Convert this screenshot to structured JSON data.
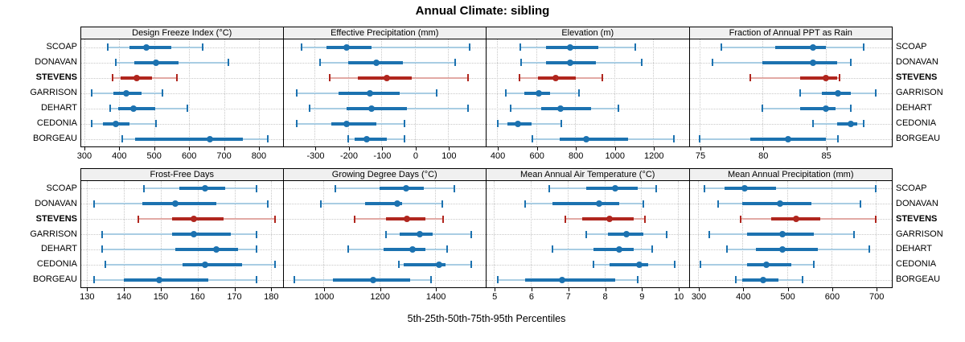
{
  "title": "Annual Climate: sibling",
  "caption": "5th-25th-50th-75th-95th Percentiles",
  "stations": [
    "SCOAP",
    "DONAVAN",
    "STEVENS",
    "GARRISON",
    "DEHART",
    "CEDONIA",
    "BORGEAU"
  ],
  "highlight_station": "STEVENS",
  "colors": {
    "blue": "#1c72b0",
    "blue_light": "#a9cde3",
    "red": "#b0261e",
    "red_light": "#e2aaa5",
    "grid": "#c8c8c8",
    "strip_bg": "#f0f0f0",
    "border": "#000000"
  },
  "chart_data": {
    "type": "scatter",
    "note": "Trellis dot plot: each row is a station's 5th-25th-50th-75th-95th percentile summary drawn as whisker (5-95), thick bar (25-75) and median dot; STEVENS highlighted in red.",
    "title": "Annual Climate: sibling",
    "xlabel": "5th-25th-50th-75th-95th Percentiles",
    "legend_position": "none",
    "grid": "dotted",
    "panels": [
      {
        "title": "Design Freeze Index (°C)",
        "row": 0,
        "col": 0,
        "xlim": [
          291,
          868
        ],
        "ticks": [
          300,
          400,
          500,
          600,
          700,
          800
        ],
        "values": {
          "SCOAP": [
            368,
            430,
            478,
            550,
            638
          ],
          "DONAVAN": [
            390,
            443,
            505,
            570,
            713
          ],
          "STEVENS": [
            381,
            404,
            450,
            494,
            565
          ],
          "GARRISON": [
            321,
            384,
            420,
            464,
            524
          ],
          "DEHART": [
            374,
            396,
            441,
            504,
            594
          ],
          "CEDONIA": [
            321,
            354,
            391,
            430,
            505
          ],
          "BORGEAU": [
            409,
            446,
            660,
            753,
            826
          ]
        }
      },
      {
        "title": "Effective Precipitation (mm)",
        "row": 0,
        "col": 1,
        "xlim": [
          -394,
          210
        ],
        "ticks": [
          -300,
          -200,
          -100,
          0,
          100
        ],
        "values": {
          "SCOAP": [
            -340,
            -265,
            -205,
            -130,
            165
          ],
          "DONAVAN": [
            -285,
            -200,
            -115,
            -35,
            120
          ],
          "STEVENS": [
            -255,
            -170,
            -85,
            -10,
            160
          ],
          "GARRISON": [
            -355,
            -230,
            -135,
            -45,
            65
          ],
          "DEHART": [
            -315,
            -205,
            -130,
            -25,
            160
          ],
          "CEDONIA": [
            -355,
            -250,
            -205,
            -115,
            -30
          ],
          "BORGEAU": [
            -200,
            -180,
            -145,
            -85,
            -30
          ]
        }
      },
      {
        "title": "Elevation (m)",
        "row": 0,
        "col": 2,
        "xlim": [
          346,
          1378
        ],
        "ticks": [
          400,
          600,
          800,
          1000,
          1200
        ],
        "values": {
          "SCOAP": [
            520,
            650,
            775,
            920,
            1110
          ],
          "DONAVAN": [
            525,
            650,
            775,
            905,
            1140
          ],
          "STEVENS": [
            515,
            610,
            700,
            805,
            940
          ],
          "GARRISON": [
            445,
            540,
            615,
            670,
            820
          ],
          "DEHART": [
            470,
            625,
            725,
            880,
            1020
          ],
          "CEDONIA": [
            405,
            455,
            505,
            575,
            730
          ],
          "BORGEAU": [
            580,
            720,
            855,
            1070,
            1305
          ]
        }
      },
      {
        "title": "Fraction of Annual PPT as Rain",
        "row": 0,
        "col": 3,
        "xlim": [
          74.2,
          90.2
        ],
        "ticks": [
          75,
          80,
          85
        ],
        "values": {
          "SCOAP": [
            76.7,
            81.0,
            84.0,
            85.0,
            88.0
          ],
          "DONAVAN": [
            76.0,
            80.0,
            84.0,
            85.9,
            87.0
          ],
          "STEVENS": [
            79.0,
            83.0,
            85.0,
            85.9,
            86.1
          ],
          "GARRISON": [
            83.0,
            84.7,
            86.0,
            87.0,
            89.0
          ],
          "DEHART": [
            80.0,
            83.0,
            85.0,
            85.8,
            87.0
          ],
          "CEDONIA": [
            84.0,
            85.9,
            87.0,
            87.5,
            88.0
          ],
          "BORGEAU": [
            75.0,
            79.0,
            82.0,
            85.0,
            86.0
          ]
        }
      },
      {
        "title": "Frost-Free Days",
        "row": 1,
        "col": 0,
        "xlim": [
          128.4,
          183.1
        ],
        "ticks": [
          130,
          140,
          150,
          160,
          170,
          180
        ],
        "values": {
          "SCOAP": [
            145.5,
            155,
            162,
            167.5,
            176
          ],
          "DONAVAN": [
            132,
            145,
            154,
            165,
            179
          ],
          "STEVENS": [
            144,
            153,
            159,
            167,
            181
          ],
          "GARRISON": [
            134,
            153,
            159,
            169,
            176
          ],
          "DEHART": [
            134,
            154,
            165,
            171,
            176
          ],
          "CEDONIA": [
            135,
            156,
            162,
            172,
            181
          ],
          "BORGEAU": [
            132,
            140,
            149.5,
            163,
            176
          ]
        }
      },
      {
        "title": "Growing Degree Days (°C)",
        "row": 1,
        "col": 1,
        "xlim": [
          857,
          1578
        ],
        "ticks": [
          1000,
          1200,
          1400
        ],
        "values": {
          "SCOAP": [
            1043,
            1200,
            1297,
            1358,
            1470
          ],
          "DONAVAN": [
            992,
            1150,
            1264,
            1282,
            1426
          ],
          "STEVENS": [
            1113,
            1224,
            1299,
            1366,
            1429
          ],
          "GARRISON": [
            1224,
            1273,
            1345,
            1392,
            1530
          ],
          "DEHART": [
            1088,
            1216,
            1318,
            1364,
            1443
          ],
          "CEDONIA": [
            1271,
            1286,
            1413,
            1438,
            1530
          ],
          "BORGEAU": [
            897,
            1035,
            1178,
            1311,
            1386
          ]
        }
      },
      {
        "title": "Mean Annual Air Temperature (°C)",
        "row": 1,
        "col": 2,
        "xlim": [
          4.8,
          10.27
        ],
        "ticks": [
          5,
          6,
          7,
          8,
          9,
          10
        ],
        "values": {
          "SCOAP": [
            6.5,
            7.5,
            8.3,
            8.9,
            9.4
          ],
          "DONAVAN": [
            5.85,
            6.6,
            7.85,
            8.4,
            9.05
          ],
          "STEVENS": [
            6.95,
            7.4,
            8.15,
            8.8,
            9.1
          ],
          "GARRISON": [
            7.5,
            8.1,
            8.6,
            9.05,
            9.7
          ],
          "DEHART": [
            6.6,
            7.7,
            8.4,
            8.8,
            9.3
          ],
          "CEDONIA": [
            7.7,
            8.15,
            8.95,
            9.2,
            9.9
          ],
          "BORGEAU": [
            5.1,
            5.85,
            6.85,
            8.3,
            8.9
          ]
        }
      },
      {
        "title": "Mean Annual Precipitation (mm)",
        "row": 1,
        "col": 3,
        "xlim": [
          281,
          734
        ],
        "ticks": [
          300,
          400,
          500,
          600,
          700
        ],
        "values": {
          "SCOAP": [
            315,
            360,
            405,
            475,
            700
          ],
          "DONAVAN": [
            345,
            400,
            485,
            555,
            665
          ],
          "STEVENS": [
            395,
            465,
            520,
            575,
            700
          ],
          "GARRISON": [
            325,
            410,
            490,
            560,
            650
          ],
          "DEHART": [
            365,
            430,
            490,
            570,
            685
          ],
          "CEDONIA": [
            305,
            410,
            453,
            510,
            560
          ],
          "BORGEAU": [
            385,
            400,
            447,
            480,
            535
          ]
        }
      }
    ]
  }
}
